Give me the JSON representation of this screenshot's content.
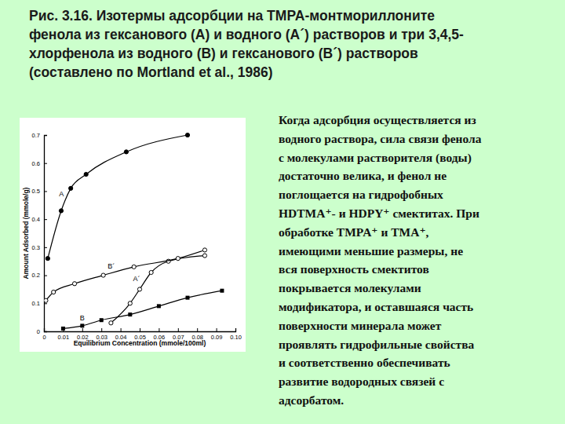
{
  "title_lines": [
    "Рис. 3.16. Изотермы адсорбции на TMPA-монтмориллоните",
    "фенола из гексанового (А) и водного (А´) растворов и три 3,4,5-",
    "хлорфенола из водного (В) и гексанового (В´) растворов",
    "(составлено по Mortland et al., 1986)"
  ],
  "text_lines": [
    "Когда адсорбция осуществляется из",
    "водного раствора, сила связи фенола",
    "с молекулами растворителя (воды)",
    "достаточно велика, и фенол не",
    "поглощается на гидрофобных",
    "HDTMA⁺- и HDPY⁺ смектитах. При",
    "обработке TMPA⁺ и TMA⁺,",
    "имеющими  меньшие размеры, не",
    "вся поверхность  смектитов",
    "покрывается молекулами",
    "модификатора, и оставшаяся часть",
    "поверхности минерала может",
    "проявлять гидрофильные свойства",
    "и соответственно обеспечивать",
    "развитие водородных связей с",
    "адсорбатом."
  ],
  "chart_data": {
    "type": "line",
    "x_label": "Equilibrium Concentration (mmole/100ml)",
    "y_label": "Amount Adsorbed (mmole/g)",
    "xlim": [
      0,
      0.1
    ],
    "ylim": [
      0,
      0.7
    ],
    "xticks": [
      0,
      0.01,
      0.02,
      0.03,
      0.04,
      0.05,
      0.06,
      0.07,
      0.08,
      0.09,
      {
        "value": 0.1,
        "label": "0.10"
      }
    ],
    "yticks": [
      0,
      0.1,
      0.2,
      0.3,
      0.4,
      0.5,
      0.6,
      0.7
    ],
    "grid": false,
    "series": [
      {
        "name": "A",
        "color": "#000000",
        "marker": "filled-circle",
        "x": [
          0.002,
          0.009,
          0.014,
          0.022,
          0.043,
          0.075
        ],
        "values": [
          0.26,
          0.43,
          0.51,
          0.56,
          0.64,
          0.7
        ]
      },
      {
        "name": "A´",
        "color": "#000000",
        "marker": "open-circle",
        "x": [
          0.035,
          0.045,
          0.05,
          0.056,
          0.065,
          0.084
        ],
        "values": [
          0.03,
          0.1,
          0.15,
          0.21,
          0.25,
          0.27
        ]
      },
      {
        "name": "B",
        "color": "#000000",
        "marker": "filled-square",
        "x": [
          0.01,
          0.02,
          0.03,
          0.045,
          0.06,
          0.075,
          0.093
        ],
        "values": [
          0.01,
          0.02,
          0.04,
          0.06,
          0.09,
          0.12,
          0.145
        ]
      },
      {
        "name": "B´",
        "color": "#000000",
        "marker": "open-circle",
        "x": [
          0.001,
          0.005,
          0.016,
          0.031,
          0.047,
          0.07,
          0.084
        ],
        "values": [
          0.11,
          0.14,
          0.17,
          0.2,
          0.23,
          0.26,
          0.29
        ]
      }
    ]
  }
}
